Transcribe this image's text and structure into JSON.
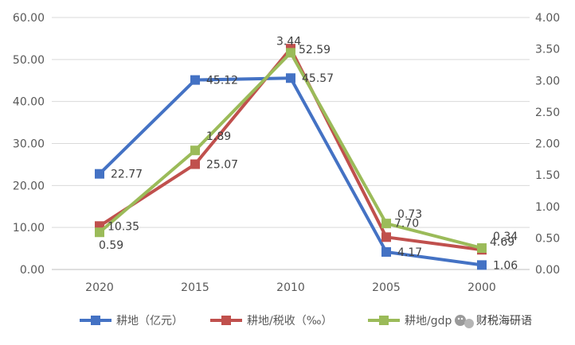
{
  "chart_data": {
    "type": "line",
    "categories": [
      "2020",
      "2015",
      "2010",
      "2005",
      "2000"
    ],
    "y_left": {
      "ylim": [
        0,
        60
      ],
      "ticks": [
        "0.00",
        "10.00",
        "20.00",
        "30.00",
        "40.00",
        "50.00",
        "60.00"
      ]
    },
    "y_right": {
      "ylim": [
        0,
        4
      ],
      "ticks": [
        "0.00",
        "0.50",
        "1.00",
        "1.50",
        "2.00",
        "2.50",
        "3.00",
        "3.50",
        "4.00"
      ]
    },
    "grid": "horizontal",
    "legend_position": "bottom",
    "series": [
      {
        "name": "耕地（亿元）",
        "axis": "left",
        "color": "#4472C4",
        "values": [
          22.77,
          45.12,
          45.57,
          4.17,
          1.06
        ],
        "labels": [
          "22.77",
          "45.12",
          "45.57",
          "4.17",
          "1.06"
        ]
      },
      {
        "name": "耕地/税收（‰）",
        "axis": "left",
        "color": "#C0504D",
        "values": [
          10.35,
          25.07,
          52.59,
          7.7,
          4.69
        ],
        "labels": [
          "10.35",
          "25.07",
          "52.59",
          "7.70",
          "4.69"
        ]
      },
      {
        "name": "耕地/gdp",
        "axis": "right",
        "color": "#9BBB59",
        "values": [
          0.59,
          1.89,
          3.44,
          0.73,
          0.34
        ],
        "labels": [
          "0.59",
          "1.89",
          "3.44",
          "0.73",
          "0.34"
        ]
      }
    ]
  },
  "watermark": {
    "text": "财税海研语",
    "icon": "wechat-icon"
  }
}
